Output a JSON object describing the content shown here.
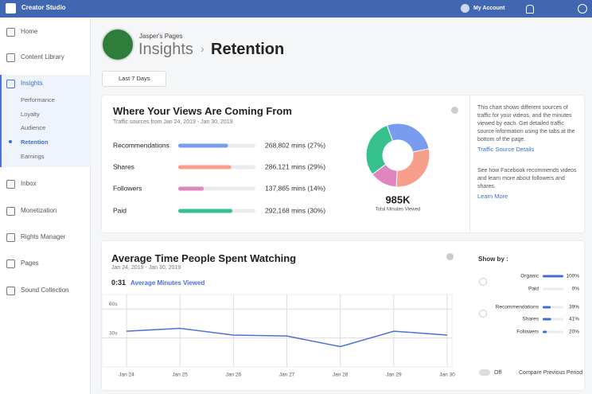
{
  "topbar": {
    "app": "Creator Studio",
    "account": "My Account"
  },
  "sidebar": {
    "items": [
      "Home",
      "Content Library",
      "Insights",
      "Inbox",
      "Monetization",
      "Rights Manager",
      "Pages",
      "Sound Collection"
    ],
    "insights_sub": [
      "Performance",
      "Loyalty",
      "Audience",
      "Retention",
      "Earnings"
    ]
  },
  "header": {
    "page": "Jasper's Pages",
    "section": "Insights",
    "title": "Retention",
    "filter": "Last 7 Days"
  },
  "traffic": {
    "title": "Where Your Views Are Coming From",
    "subtitle": "Traffic sources from Jan 24, 2019 - Jan 30, 2019",
    "rows": [
      {
        "name": "Recommendations",
        "minutes": 268802,
        "label": "268,802 mins (27%)",
        "color": "#7a9cf0"
      },
      {
        "name": "Shares",
        "minutes": 286121,
        "label": "286,121 mins (29%)",
        "color": "#f6a08b"
      },
      {
        "name": "Followers",
        "minutes": 137865,
        "label": "137,865 mins (14%)",
        "color": "#df86bf"
      },
      {
        "name": "Paid",
        "minutes": 292168,
        "label": "292,168 mins (30%)",
        "color": "#36c08c"
      }
    ],
    "total": "985K",
    "total_caption": "Total Minutes Viewed",
    "info1": "This chart shows different sources of traffic for your videos, and the minutes viewed by each. Get detailed traffic source information using the tabs at the bottom of the page.",
    "link1": "Traffic Source Details",
    "info2": "See how Facebook recommends videos and learn more about followers and shares.",
    "link2": "Learn More"
  },
  "chart_data": {
    "type": "line",
    "title": "Average Time People Spent Watching",
    "subtitle": "Jan 24, 2019 - Jan 30, 2019",
    "summary_value": "0:31",
    "summary_label": "Average Minutes Viewed",
    "categories": [
      "Jan 24",
      "Jan 25",
      "Jan 26",
      "Jan 27",
      "Jan 28",
      "Jan 29",
      "Jan 30"
    ],
    "values": [
      37,
      40,
      33,
      32,
      21,
      37,
      33
    ],
    "color": "#4a72d9",
    "ylim": [
      0,
      75
    ],
    "yticks": [
      {
        "value": 30,
        "label": "30s"
      },
      {
        "value": 60,
        "label": "60s"
      }
    ],
    "grid": true
  },
  "show_by": {
    "title": "Show by :",
    "groups": [
      [
        {
          "name": "Organic",
          "value": 100,
          "label": "100%"
        },
        {
          "name": "Paid",
          "value": 0,
          "label": "0%"
        }
      ],
      [
        {
          "name": "Recommendations",
          "value": 39,
          "label": "39%"
        },
        {
          "name": "Shares",
          "value": 41,
          "label": "41%"
        },
        {
          "name": "Followers",
          "value": 20,
          "label": "20%"
        }
      ]
    ],
    "toggle": "Off",
    "compare": "Compare Previous Period"
  }
}
